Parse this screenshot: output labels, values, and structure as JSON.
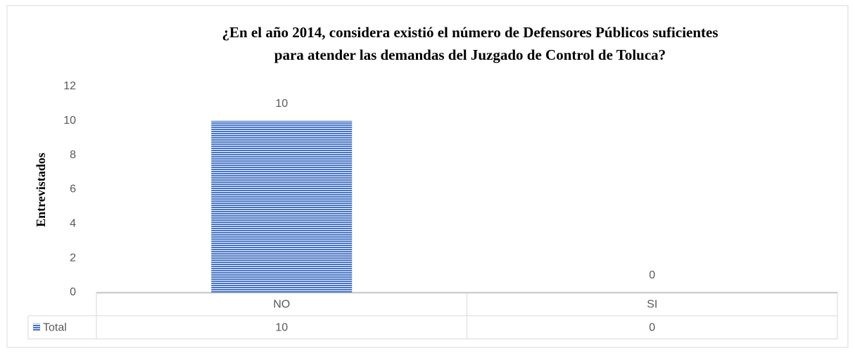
{
  "chart_data": {
    "type": "bar",
    "title": [
      "¿En el año 2014, considera existió el número de Defensores Públicos suficientes",
      "para atender las demandas del Juzgado de Control de Toluca?"
    ],
    "y_label": "Entrevistados",
    "categories": [
      "NO",
      "SI"
    ],
    "series": [
      {
        "name": "Total",
        "color": "#4472c4",
        "values": [
          10,
          0
        ]
      }
    ],
    "ylim": [
      0,
      12
    ],
    "yticks": [
      0,
      2,
      4,
      6,
      8,
      10,
      12
    ],
    "grid": false
  }
}
